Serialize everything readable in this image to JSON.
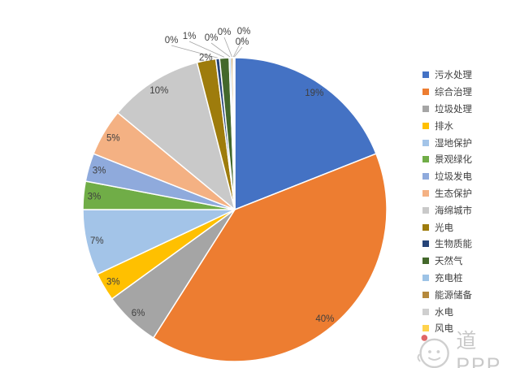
{
  "chart_data": {
    "type": "pie",
    "title": "",
    "categories": [
      "污水处理",
      "综合治理",
      "垃圾处理",
      "排水",
      "湿地保护",
      "景观绿化",
      "垃圾发电",
      "生态保护",
      "海绵城市",
      "光电",
      "生物质能",
      "天然气",
      "充电桩",
      "能源储备",
      "水电",
      "风电"
    ],
    "values": [
      19,
      40,
      6,
      3,
      7,
      3,
      3,
      5,
      10,
      2,
      0.4,
      1,
      0.2,
      0.2,
      0.1,
      0.1
    ],
    "labels": [
      "19%",
      "40%",
      "6%",
      "3%",
      "7%",
      "3%",
      "3%",
      "5%",
      "10%",
      "2%",
      "0%",
      "1%",
      "0%",
      "0%",
      "0%",
      "0%"
    ],
    "colors": [
      "#4472C4",
      "#ED7D31",
      "#A5A5A5",
      "#FFC000",
      "#A3C4E8",
      "#70AD47",
      "#8FAADC",
      "#F4B183",
      "#C9C9C9",
      "#9E7C0C",
      "#264478",
      "#43682B",
      "#9DC3E6",
      "#B5893C",
      "#CFCFCF",
      "#FFD34D"
    ],
    "legend_position": "right",
    "direction": "clockwise",
    "start_angle_deg": 0,
    "label_color": "#3F3F3F",
    "leader_line_color": "#A6A6A6",
    "slice_border_color": "#FFFFFF"
  },
  "watermark": {
    "text": "道PPP"
  }
}
